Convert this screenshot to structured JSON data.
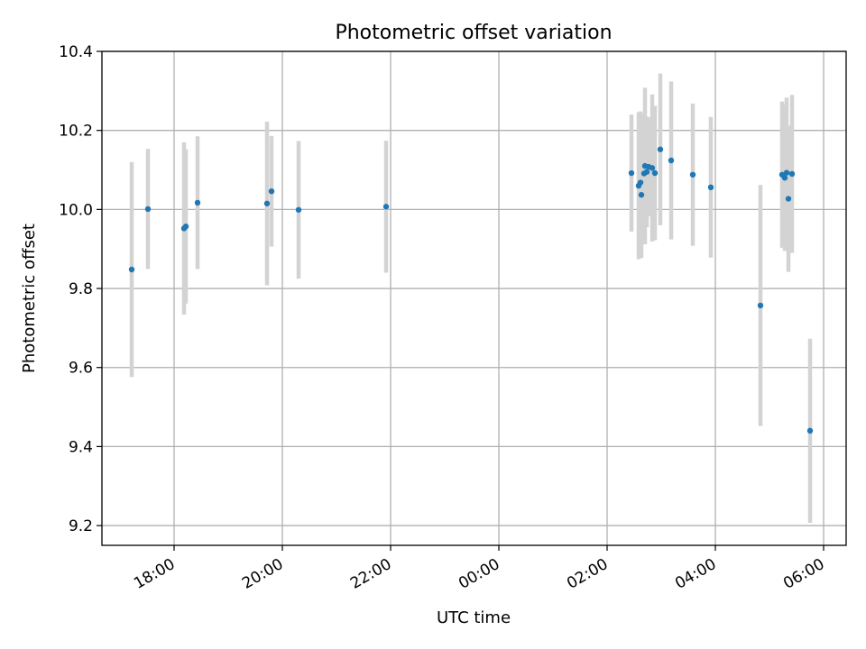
{
  "chart_data": {
    "type": "scatter",
    "title": "Photometric offset variation",
    "xlabel": "UTC time",
    "ylabel": "Photometric offset",
    "x_ticks": [
      "18:00",
      "20:00",
      "22:00",
      "00:00",
      "02:00",
      "04:00",
      "06:00"
    ],
    "y_ticks": [
      "9.2",
      "9.4",
      "9.6",
      "9.8",
      "10.0",
      "10.2",
      "10.4"
    ],
    "xlim": [
      "16:40",
      "06:25"
    ],
    "ylim": [
      9.15,
      10.4
    ],
    "grid": true,
    "legend": "none",
    "colors": {
      "point": "#1f77b4",
      "errorbar": "#d3d3d3",
      "grid": "#b0b0b0"
    },
    "points": [
      {
        "x": "17:13",
        "y": 9.848,
        "err": 0.272
      },
      {
        "x": "17:31",
        "y": 10.001,
        "err": 0.152
      },
      {
        "x": "18:11",
        "y": 9.952,
        "err": 0.218
      },
      {
        "x": "18:13",
        "y": 9.957,
        "err": 0.195
      },
      {
        "x": "18:26",
        "y": 10.017,
        "err": 0.168
      },
      {
        "x": "19:43",
        "y": 10.015,
        "err": 0.207
      },
      {
        "x": "19:48",
        "y": 10.046,
        "err": 0.14
      },
      {
        "x": "20:18",
        "y": 9.999,
        "err": 0.174
      },
      {
        "x": "21:55",
        "y": 10.007,
        "err": 0.167
      },
      {
        "x": "02:27",
        "y": 10.092,
        "err": 0.148
      },
      {
        "x": "02:35",
        "y": 10.06,
        "err": 0.186
      },
      {
        "x": "02:37",
        "y": 10.068,
        "err": 0.18
      },
      {
        "x": "02:38",
        "y": 10.037,
        "err": 0.16
      },
      {
        "x": "02:41",
        "y": 10.091,
        "err": 0.15
      },
      {
        "x": "02:42",
        "y": 10.11,
        "err": 0.198
      },
      {
        "x": "02:44",
        "y": 10.095,
        "err": 0.14
      },
      {
        "x": "02:46",
        "y": 10.108,
        "err": 0.125
      },
      {
        "x": "02:50",
        "y": 10.105,
        "err": 0.186
      },
      {
        "x": "02:53",
        "y": 10.092,
        "err": 0.17
      },
      {
        "x": "02:59",
        "y": 10.152,
        "err": 0.192
      },
      {
        "x": "03:11",
        "y": 10.124,
        "err": 0.2
      },
      {
        "x": "03:35",
        "y": 10.088,
        "err": 0.18
      },
      {
        "x": "03:55",
        "y": 10.056,
        "err": 0.178
      },
      {
        "x": "04:50",
        "y": 9.757,
        "err": 0.305
      },
      {
        "x": "05:14",
        "y": 10.088,
        "err": 0.185
      },
      {
        "x": "05:17",
        "y": 10.08,
        "err": 0.185
      },
      {
        "x": "05:19",
        "y": 10.093,
        "err": 0.19
      },
      {
        "x": "05:21",
        "y": 10.027,
        "err": 0.185
      },
      {
        "x": "05:25",
        "y": 10.09,
        "err": 0.2
      },
      {
        "x": "05:45",
        "y": 9.44,
        "err": 0.233
      }
    ]
  }
}
